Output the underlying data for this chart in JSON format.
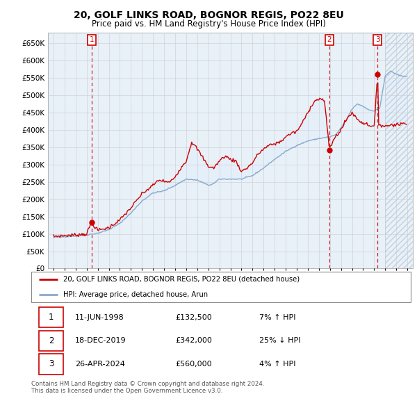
{
  "title": "20, GOLF LINKS ROAD, BOGNOR REGIS, PO22 8EU",
  "subtitle": "Price paid vs. HM Land Registry's House Price Index (HPI)",
  "xlim": [
    1994.5,
    2027.5
  ],
  "ylim": [
    0,
    680000
  ],
  "yticks": [
    0,
    50000,
    100000,
    150000,
    200000,
    250000,
    300000,
    350000,
    400000,
    450000,
    500000,
    550000,
    600000,
    650000
  ],
  "ytick_labels": [
    "£0",
    "£50K",
    "£100K",
    "£150K",
    "£200K",
    "£250K",
    "£300K",
    "£350K",
    "£400K",
    "£450K",
    "£500K",
    "£550K",
    "£600K",
    "£650K"
  ],
  "xticks": [
    1995,
    1996,
    1997,
    1998,
    1999,
    2000,
    2001,
    2002,
    2003,
    2004,
    2005,
    2006,
    2007,
    2008,
    2009,
    2010,
    2011,
    2012,
    2013,
    2014,
    2015,
    2016,
    2017,
    2018,
    2019,
    2020,
    2021,
    2022,
    2023,
    2024,
    2025,
    2026,
    2027
  ],
  "sale_dates": [
    1998.44,
    2019.96,
    2024.32
  ],
  "sale_prices": [
    132500,
    342000,
    560000
  ],
  "sale_labels": [
    "1",
    "2",
    "3"
  ],
  "red_color": "#cc0000",
  "blue_color": "#88aacc",
  "fill_color": "#ddeeff",
  "legend_red_label": "20, GOLF LINKS ROAD, BOGNOR REGIS, PO22 8EU (detached house)",
  "legend_blue_label": "HPI: Average price, detached house, Arun",
  "table_rows": [
    [
      "1",
      "11-JUN-1998",
      "£132,500",
      "7% ↑ HPI"
    ],
    [
      "2",
      "18-DEC-2019",
      "£342,000",
      "25% ↓ HPI"
    ],
    [
      "3",
      "26-APR-2024",
      "£560,000",
      "4% ↑ HPI"
    ]
  ],
  "footer": "Contains HM Land Registry data © Crown copyright and database right 2024.\nThis data is licensed under the Open Government Licence v3.0.",
  "background_color": "#ffffff",
  "chart_bg_color": "#e8f0f8",
  "grid_color": "#cccccc",
  "hatch_start": 2025.0
}
